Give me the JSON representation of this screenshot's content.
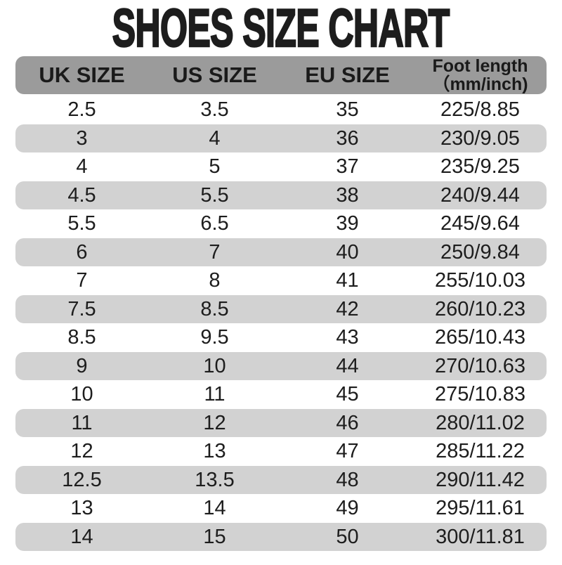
{
  "page": {
    "title": "SHOES SIZE CHART"
  },
  "table": {
    "headers": [
      "UK SIZE",
      "US SIZE",
      "EU SIZE"
    ],
    "foot_header": {
      "line1": "Foot length",
      "line2": "（mm/inch)"
    },
    "rows": [
      [
        "2.5",
        "3.5",
        "35",
        "225/8.85"
      ],
      [
        "3",
        "4",
        "36",
        "230/9.05"
      ],
      [
        "4",
        "5",
        "37",
        "235/9.25"
      ],
      [
        "4.5",
        "5.5",
        "38",
        "240/9.44"
      ],
      [
        "5.5",
        "6.5",
        "39",
        "245/9.64"
      ],
      [
        "6",
        "7",
        "40",
        "250/9.84"
      ],
      [
        "7",
        "8",
        "41",
        "255/10.03"
      ],
      [
        "7.5",
        "8.5",
        "42",
        "260/10.23"
      ],
      [
        "8.5",
        "9.5",
        "43",
        "265/10.43"
      ],
      [
        "9",
        "10",
        "44",
        "270/10.63"
      ],
      [
        "10",
        "11",
        "45",
        "275/10.83"
      ],
      [
        "11",
        "12",
        "46",
        "280/11.02"
      ],
      [
        "12",
        "13",
        "47",
        "285/11.22"
      ],
      [
        "12.5",
        "13.5",
        "48",
        "290/11.42"
      ],
      [
        "13",
        "14",
        "49",
        "295/11.61"
      ],
      [
        "14",
        "15",
        "50",
        "300/11.81"
      ]
    ]
  },
  "colors": {
    "header_bg": "#9b9b9b",
    "row_alt_bg": "#d2d2d2",
    "text": "#1d1d1d"
  }
}
